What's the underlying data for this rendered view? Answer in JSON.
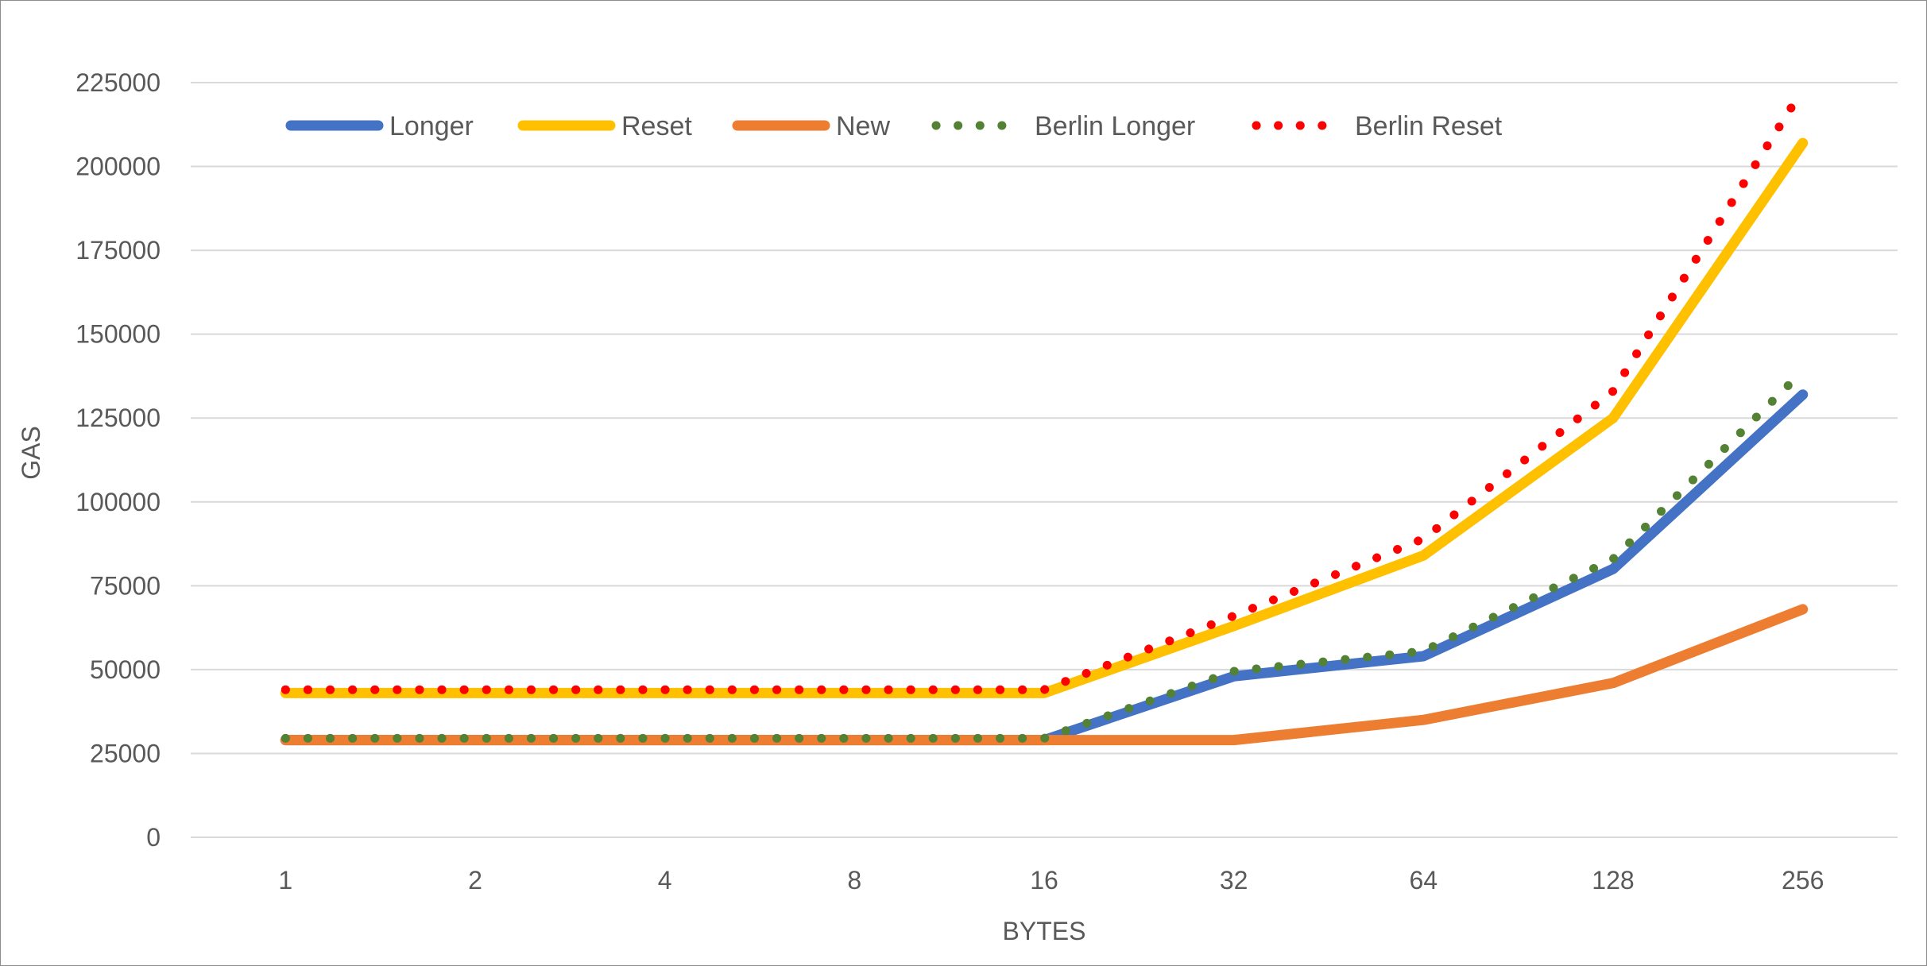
{
  "chart_data": {
    "type": "line",
    "title": "",
    "xlabel": "BYTES",
    "ylabel": "GAS",
    "categories": [
      "1",
      "2",
      "4",
      "8",
      "16",
      "32",
      "64",
      "128",
      "256"
    ],
    "ylim": [
      0,
      225000
    ],
    "yticks": [
      0,
      25000,
      50000,
      75000,
      100000,
      125000,
      150000,
      175000,
      200000,
      225000
    ],
    "grid": true,
    "legend_position": "top",
    "series": [
      {
        "name": "Longer",
        "color": "#4472C4",
        "style": "solid",
        "values": [
          29000,
          29000,
          29000,
          29000,
          29000,
          48000,
          54000,
          80000,
          132000
        ]
      },
      {
        "name": "Reset",
        "color": "#FFC000",
        "style": "solid",
        "values": [
          43000,
          43000,
          43000,
          43000,
          43000,
          63000,
          84000,
          125000,
          207000
        ]
      },
      {
        "name": "New",
        "color": "#ED7D31",
        "style": "solid",
        "values": [
          29000,
          29000,
          29000,
          29000,
          29000,
          29000,
          35000,
          46000,
          68000
        ]
      },
      {
        "name": "Berlin Longer",
        "color": "#548235",
        "style": "dotted",
        "values": [
          29500,
          29500,
          29500,
          29500,
          29500,
          49500,
          55500,
          83000,
          139000
        ]
      },
      {
        "name": "Berlin Reset",
        "color": "#FF0000",
        "style": "dotted",
        "values": [
          44000,
          44000,
          44000,
          44000,
          44000,
          66000,
          89000,
          133000,
          223000
        ]
      }
    ]
  }
}
